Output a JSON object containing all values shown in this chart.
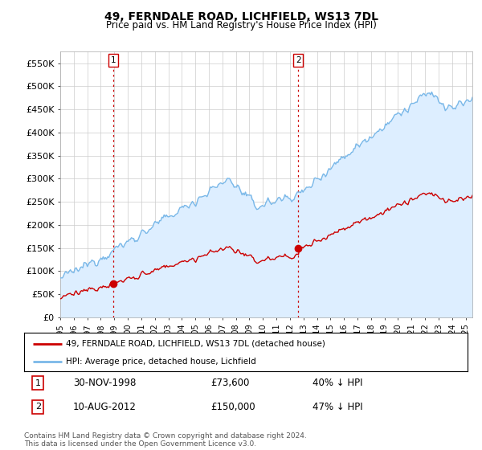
{
  "title": "49, FERNDALE ROAD, LICHFIELD, WS13 7DL",
  "subtitle": "Price paid vs. HM Land Registry's House Price Index (HPI)",
  "ylabel_ticks": [
    "£0",
    "£50K",
    "£100K",
    "£150K",
    "£200K",
    "£250K",
    "£300K",
    "£350K",
    "£400K",
    "£450K",
    "£500K",
    "£550K"
  ],
  "ytick_values": [
    0,
    50000,
    100000,
    150000,
    200000,
    250000,
    300000,
    350000,
    400000,
    450000,
    500000,
    550000
  ],
  "ylim": [
    0,
    575000
  ],
  "xlim_start": 1995.0,
  "xlim_end": 2025.5,
  "hpi_color": "#7ab8e8",
  "hpi_fill_color": "#ddeeff",
  "price_color": "#cc0000",
  "purchase1_x": 1998.92,
  "purchase1_y": 73600,
  "purchase2_x": 2012.61,
  "purchase2_y": 150000,
  "legend_label1": "49, FERNDALE ROAD, LICHFIELD, WS13 7DL (detached house)",
  "legend_label2": "HPI: Average price, detached house, Lichfield",
  "table_row1_num": "1",
  "table_row1_date": "30-NOV-1998",
  "table_row1_price": "£73,600",
  "table_row1_hpi": "40% ↓ HPI",
  "table_row2_num": "2",
  "table_row2_date": "10-AUG-2012",
  "table_row2_price": "£150,000",
  "table_row2_hpi": "47% ↓ HPI",
  "footnote": "Contains HM Land Registry data © Crown copyright and database right 2024.\nThis data is licensed under the Open Government Licence v3.0.",
  "bg_color": "#ffffff",
  "grid_color": "#cccccc",
  "vline_color": "#cc0000"
}
